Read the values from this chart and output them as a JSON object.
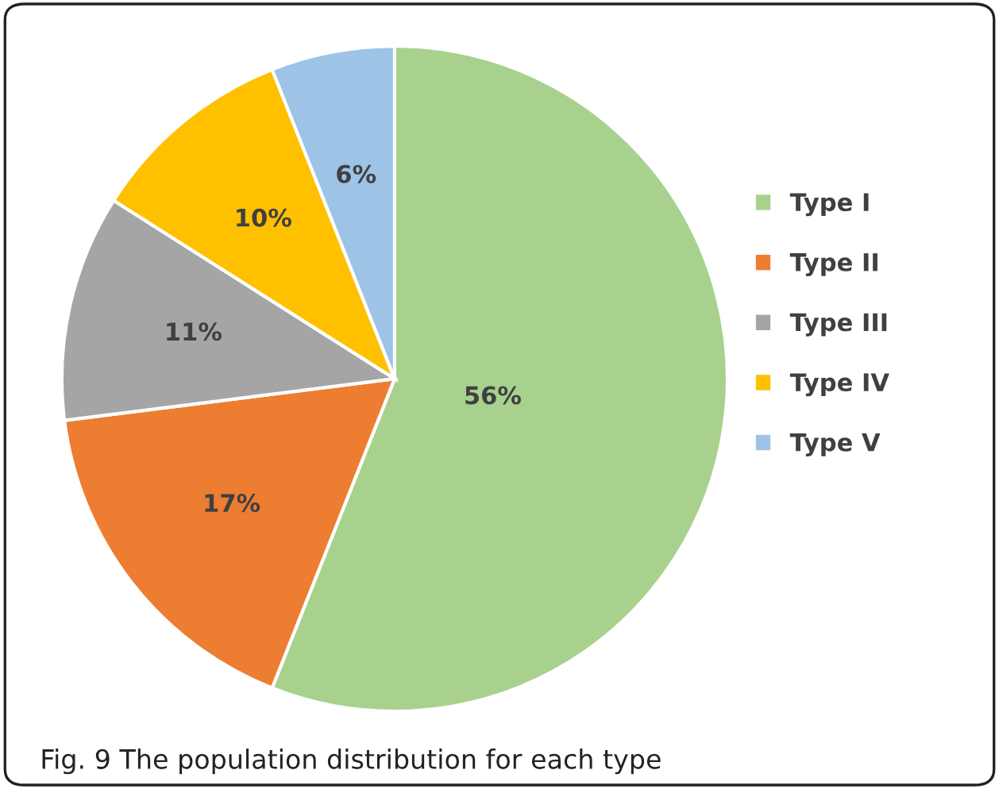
{
  "chart_data": {
    "type": "pie",
    "categories": [
      "Type I",
      "Type II",
      "Type III",
      "Type IV",
      "Type V"
    ],
    "values": [
      56,
      17,
      11,
      10,
      6
    ],
    "value_labels": [
      "56%",
      "17%",
      "11%",
      "10%",
      "6%"
    ],
    "colors": [
      "#a9d18e",
      "#ed7d31",
      "#a5a5a5",
      "#ffc000",
      "#9dc3e6"
    ],
    "legend": "right",
    "annotations": [
      "Fig. 9 The population distribution for each type"
    ]
  }
}
